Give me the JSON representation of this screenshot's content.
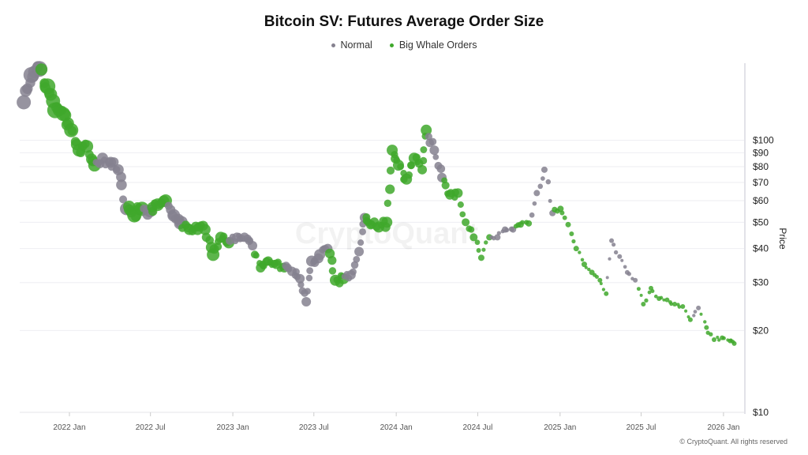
{
  "chart_data": {
    "type": "scatter",
    "title": "Bitcoin SV: Futures Average Order Size",
    "ylabel": "Price",
    "xlabel": "",
    "yscale": "log",
    "ylim": [
      10,
      200
    ],
    "xlim": [
      "2021-09-12",
      "2026-02-16"
    ],
    "grid": true,
    "legend_position": "top",
    "y_ticks": [
      "$10",
      "$20",
      "$30",
      "$40",
      "$50",
      "$60",
      "$70",
      "$80",
      "$90",
      "$100"
    ],
    "y_tick_values": [
      10,
      20,
      30,
      40,
      50,
      60,
      70,
      80,
      90,
      100
    ],
    "x_ticks": [
      "2022 Jan",
      "2022 Jul",
      "2023 Jan",
      "2023 Jul",
      "2024 Jan",
      "2024 Jul",
      "2025 Jan",
      "2025 Jul",
      "2026 Jan"
    ],
    "x_tick_values": [
      "2022-01-01",
      "2022-07-01",
      "2023-01-01",
      "2023-07-01",
      "2024-01-01",
      "2024-07-01",
      "2025-01-01",
      "2025-07-01",
      "2026-01-01"
    ],
    "series": [
      {
        "name": "Normal",
        "key": "N",
        "color": "#85818f"
      },
      {
        "name": "Big Whale Orders",
        "key": "G",
        "color": "#3fa82c"
      }
    ],
    "size_note": "bubble size = relative average order size",
    "points": [
      [
        "2021-09-21",
        138,
        "N",
        9
      ],
      [
        "2021-10-08",
        174,
        "N",
        10
      ],
      [
        "2021-10-26",
        183,
        "N",
        10
      ],
      [
        "2021-11-13",
        158,
        "G",
        10
      ],
      [
        "2021-11-30",
        129,
        "G",
        10
      ],
      [
        "2021-12-18",
        125,
        "G",
        9
      ],
      [
        "2022-01-05",
        109,
        "G",
        9
      ],
      [
        "2022-01-22",
        92,
        "G",
        8
      ],
      [
        "2022-02-09",
        95,
        "G",
        8
      ],
      [
        "2022-02-26",
        81,
        "G",
        8
      ],
      [
        "2022-03-16",
        86,
        "N",
        7
      ],
      [
        "2022-04-03",
        83,
        "N",
        7
      ],
      [
        "2022-04-20",
        78,
        "N",
        7
      ],
      [
        "2022-05-08",
        56,
        "N",
        8
      ],
      [
        "2022-05-26",
        53,
        "G",
        9
      ],
      [
        "2022-06-12",
        56,
        "G",
        9
      ],
      [
        "2022-06-30",
        55,
        "N",
        8
      ],
      [
        "2022-07-17",
        58,
        "G",
        8
      ],
      [
        "2022-08-04",
        60,
        "G",
        8
      ],
      [
        "2022-08-22",
        53,
        "N",
        8
      ],
      [
        "2022-09-08",
        50,
        "N",
        8
      ],
      [
        "2022-09-26",
        47,
        "G",
        7
      ],
      [
        "2022-10-14",
        47,
        "G",
        7
      ],
      [
        "2022-10-31",
        47,
        "G",
        7
      ],
      [
        "2022-11-18",
        38,
        "G",
        8
      ],
      [
        "2022-12-05",
        44,
        "G",
        7
      ],
      [
        "2022-12-23",
        42,
        "G",
        7
      ],
      [
        "2023-01-10",
        44,
        "N",
        6
      ],
      [
        "2023-01-27",
        44,
        "N",
        6
      ],
      [
        "2023-02-14",
        41,
        "N",
        6
      ],
      [
        "2023-03-04",
        34,
        "G",
        6
      ],
      [
        "2023-03-21",
        36,
        "G",
        6
      ],
      [
        "2023-04-08",
        35,
        "G",
        6
      ],
      [
        "2023-04-26",
        34,
        "G",
        6
      ],
      [
        "2023-05-13",
        33,
        "N",
        6
      ],
      [
        "2023-05-31",
        31,
        "N",
        6
      ],
      [
        "2023-06-14",
        25.5,
        "N",
        6
      ],
      [
        "2023-06-26",
        36,
        "N",
        7
      ],
      [
        "2023-07-14",
        38,
        "N",
        7
      ],
      [
        "2023-08-01",
        40,
        "N",
        6
      ],
      [
        "2023-08-18",
        30.6,
        "G",
        7
      ],
      [
        "2023-09-05",
        31,
        "G",
        7
      ],
      [
        "2023-09-22",
        32,
        "N",
        6
      ],
      [
        "2023-10-10",
        39,
        "N",
        6
      ],
      [
        "2023-10-22",
        52,
        "N",
        6
      ],
      [
        "2023-11-05",
        49,
        "G",
        6
      ],
      [
        "2023-11-23",
        48,
        "G",
        7
      ],
      [
        "2023-12-11",
        50,
        "G",
        7
      ],
      [
        "2023-12-23",
        92,
        "G",
        7
      ],
      [
        "2024-01-06",
        81,
        "G",
        7
      ],
      [
        "2024-01-24",
        72,
        "G",
        7
      ],
      [
        "2024-02-10",
        86,
        "G",
        7
      ],
      [
        "2024-02-28",
        78,
        "G",
        6
      ],
      [
        "2024-03-08",
        109,
        "G",
        7
      ],
      [
        "2024-03-26",
        92,
        "N",
        6
      ],
      [
        "2024-04-12",
        73,
        "N",
        6
      ],
      [
        "2024-04-30",
        63,
        "G",
        6
      ],
      [
        "2024-05-18",
        64,
        "G",
        6
      ],
      [
        "2024-06-04",
        50,
        "G",
        5
      ],
      [
        "2024-06-22",
        44,
        "G",
        5
      ],
      [
        "2024-07-09",
        37,
        "G",
        4
      ],
      [
        "2024-07-27",
        44,
        "G",
        4
      ],
      [
        "2024-08-14",
        44,
        "N",
        4
      ],
      [
        "2024-08-31",
        47,
        "N",
        4
      ],
      [
        "2024-09-18",
        47,
        "N",
        4
      ],
      [
        "2024-10-05",
        49,
        "G",
        4
      ],
      [
        "2024-10-23",
        49.5,
        "G",
        4
      ],
      [
        "2024-11-10",
        64,
        "N",
        4
      ],
      [
        "2024-11-27",
        78,
        "N",
        4
      ],
      [
        "2024-12-15",
        54,
        "N",
        4
      ],
      [
        "2025-01-02",
        56,
        "G",
        4
      ],
      [
        "2025-01-19",
        49,
        "G",
        3.5
      ],
      [
        "2025-02-06",
        40,
        "G",
        3.5
      ],
      [
        "2025-02-24",
        35,
        "G",
        3.5
      ],
      [
        "2025-03-13",
        32.7,
        "G",
        3.5
      ],
      [
        "2025-03-31",
        30.6,
        "G",
        3
      ],
      [
        "2025-04-14",
        27.3,
        "G",
        3
      ],
      [
        "2025-04-26",
        42.8,
        "N",
        3
      ],
      [
        "2025-05-14",
        37.4,
        "N",
        3
      ],
      [
        "2025-05-31",
        32.7,
        "N",
        3
      ],
      [
        "2025-06-18",
        30.6,
        "N",
        3
      ],
      [
        "2025-07-06",
        25,
        "G",
        3
      ],
      [
        "2025-07-23",
        28.6,
        "G",
        3
      ],
      [
        "2025-08-10",
        26.2,
        "G",
        3
      ],
      [
        "2025-08-28",
        25.9,
        "G",
        3
      ],
      [
        "2025-09-14",
        25,
        "G",
        3
      ],
      [
        "2025-10-02",
        24.5,
        "G",
        3
      ],
      [
        "2025-10-19",
        21.9,
        "G",
        3
      ],
      [
        "2025-11-06",
        24.2,
        "N",
        3
      ],
      [
        "2025-11-24",
        20.5,
        "G",
        3
      ],
      [
        "2025-12-11",
        18.5,
        "G",
        3
      ],
      [
        "2025-12-29",
        18.8,
        "G",
        3
      ],
      [
        "2026-01-16",
        18.3,
        "G",
        3
      ],
      [
        "2026-01-25",
        17.9,
        "G",
        3
      ]
    ]
  },
  "watermark": "CryptoQuant",
  "copyright": "© CryptoQuant. All rights reserved"
}
